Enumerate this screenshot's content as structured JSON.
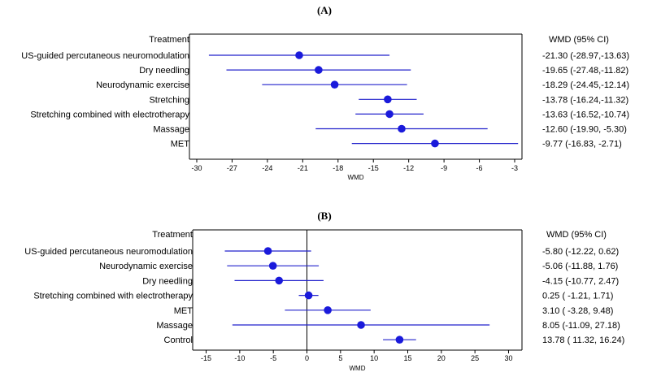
{
  "chart_data": [
    {
      "type": "forest",
      "panel_label": "(A)",
      "header_left": "Treatment",
      "header_right": "WMD (95% CI)",
      "xlabel": "WMD",
      "xlim": [
        -30,
        -3
      ],
      "xticks": [
        -30,
        -27,
        -24,
        -21,
        -18,
        -15,
        -12,
        -9,
        -6,
        -3
      ],
      "zero_line": false,
      "rows": [
        {
          "label": "US-guided percutaneous neuromodulation",
          "est": -21.3,
          "lo": -28.97,
          "hi": -13.63,
          "text": "-21.30  (-28.97,-13.63)"
        },
        {
          "label": "Dry needling",
          "est": -19.65,
          "lo": -27.48,
          "hi": -11.82,
          "text": "-19.65  (-27.48,-11.82)"
        },
        {
          "label": "Neurodynamic exercise",
          "est": -18.29,
          "lo": -24.45,
          "hi": -12.14,
          "text": "-18.29  (-24.45,-12.14)"
        },
        {
          "label": "Stretching",
          "est": -13.78,
          "lo": -16.24,
          "hi": -11.32,
          "text": "-13.78  (-16.24,-11.32)"
        },
        {
          "label": "Stretching combined with electrotherapy",
          "est": -13.63,
          "lo": -16.52,
          "hi": -10.74,
          "text": "-13.63  (-16.52,-10.74)"
        },
        {
          "label": "Massage",
          "est": -12.6,
          "lo": -19.9,
          "hi": -5.3,
          "text": "-12.60  (-19.90, -5.30)"
        },
        {
          "label": "MET",
          "est": -9.77,
          "lo": -16.83,
          "hi": -2.71,
          "text": "-9.77  (-16.83, -2.71)"
        }
      ]
    },
    {
      "type": "forest",
      "panel_label": "(B)",
      "header_left": "Treatment",
      "header_right": "WMD (95% CI)",
      "xlabel": "WMD",
      "xlim": [
        -17,
        32
      ],
      "xticks": [
        -15,
        -10,
        -5,
        0,
        5,
        10,
        15,
        20,
        25,
        30
      ],
      "zero_line": true,
      "rows": [
        {
          "label": "US-guided percutaneous neuromodulation",
          "est": -5.8,
          "lo": -12.22,
          "hi": 0.62,
          "text": "-5.80  (-12.22,  0.62)"
        },
        {
          "label": "Neurodynamic exercise",
          "est": -5.06,
          "lo": -11.88,
          "hi": 1.76,
          "text": "-5.06  (-11.88,  1.76)"
        },
        {
          "label": "Dry needling",
          "est": -4.15,
          "lo": -10.77,
          "hi": 2.47,
          "text": "-4.15  (-10.77,  2.47)"
        },
        {
          "label": "Stretching combined with electrotherapy",
          "est": 0.25,
          "lo": -1.21,
          "hi": 1.71,
          "text": "0.25  ( -1.21,  1.71)"
        },
        {
          "label": "MET",
          "est": 3.1,
          "lo": -3.28,
          "hi": 9.48,
          "text": "3.10  ( -3.28,  9.48)"
        },
        {
          "label": "Massage",
          "est": 8.05,
          "lo": -11.09,
          "hi": 27.18,
          "text": "8.05  (-11.09, 27.18)"
        },
        {
          "label": "Control",
          "est": 13.78,
          "lo": 11.32,
          "hi": 16.24,
          "text": "13.78  ( 11.32, 16.24)"
        }
      ]
    }
  ],
  "colors": {
    "marker": "#1a1adb",
    "line": "#2222cc",
    "axis": "#000000"
  }
}
